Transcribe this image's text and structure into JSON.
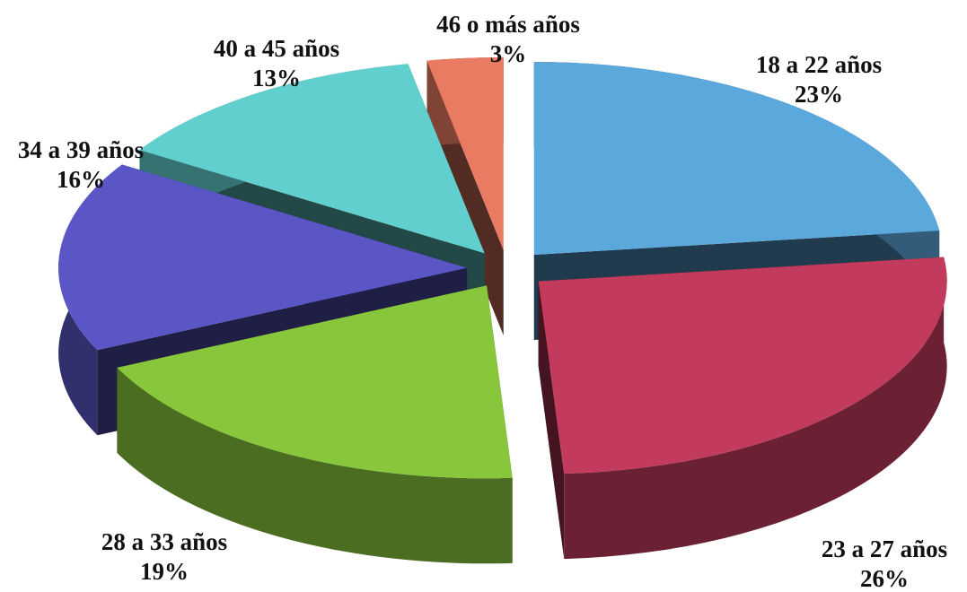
{
  "chart_data": {
    "type": "pie",
    "categories": [
      "18 a 22 años",
      "23 a 27 años",
      "28 a 33 años",
      "34 a 39 años",
      "40 a 45 años",
      "46 o más años"
    ],
    "values": [
      23,
      26,
      19,
      16,
      13,
      3
    ],
    "value_labels": [
      "23%",
      "26%",
      "19%",
      "16%",
      "13%",
      "3%"
    ],
    "colors": [
      "#5ba8dc",
      "#c23a5c",
      "#88c63c",
      "#5a56c6",
      "#62cfcf",
      "#e97b63"
    ]
  }
}
